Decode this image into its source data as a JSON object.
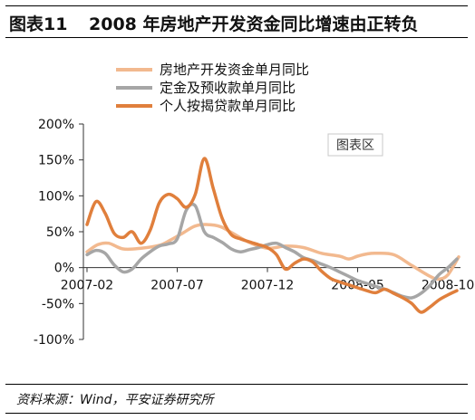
{
  "header": {
    "figure_label": "图表11",
    "title": "2008 年房地产开发资金同比增速由正转负"
  },
  "source": "资料来源：Wind，平安证券研究所",
  "watermark": "图表区",
  "chart_data": {
    "type": "line",
    "title": "2008 年房地产开发资金同比增速由正转负",
    "x_tick_labels": [
      "2007-02",
      "2007-07",
      "2007-12",
      "2008-05",
      "2008-10"
    ],
    "x_tick_positions": [
      0,
      5,
      10,
      15,
      20
    ],
    "x_range": [
      -0.2,
      20.7
    ],
    "ylim": [
      -100,
      200
    ],
    "y_ticks": [
      -100,
      -50,
      0,
      50,
      100,
      150,
      200
    ],
    "y_tick_labels": [
      "-100%",
      "-50%",
      "0%",
      "50%",
      "100%",
      "150%",
      "200%"
    ],
    "legend_position": "top",
    "series": [
      {
        "name": "房地产开发资金单月同比",
        "color": "#f2b98f",
        "x": [
          0,
          0.6,
          1.2,
          2,
          3,
          4,
          4.6,
          5.3,
          6,
          6.7,
          7.4,
          8,
          9,
          10,
          11,
          12,
          13,
          14,
          14.5,
          15,
          15.5,
          16,
          17,
          18,
          19,
          19.5,
          20,
          20.6
        ],
        "values": [
          22,
          32,
          34,
          26,
          27,
          31,
          38,
          48,
          58,
          60,
          57,
          49,
          35,
          27,
          30,
          28,
          20,
          16,
          12,
          16,
          19,
          20,
          18,
          3,
          -12,
          -16,
          -10,
          15
        ]
      },
      {
        "name": "定金及预收款单月同比",
        "color": "#a6a6a6",
        "x": [
          0,
          0.5,
          1,
          1.5,
          2,
          2.5,
          3,
          3.5,
          4,
          4.5,
          5,
          5.5,
          6,
          6.5,
          7,
          7.5,
          8,
          8.5,
          9,
          9.5,
          10,
          10.5,
          11,
          11.5,
          12,
          12.5,
          13,
          13.5,
          14,
          14.5,
          15,
          15.5,
          16,
          16.5,
          17,
          17.5,
          18,
          18.5,
          19,
          19.5,
          20,
          20.5
        ],
        "values": [
          18,
          24,
          20,
          4,
          -6,
          -2,
          12,
          22,
          30,
          33,
          40,
          80,
          86,
          50,
          42,
          35,
          26,
          22,
          25,
          28,
          32,
          34,
          28,
          22,
          14,
          10,
          5,
          0,
          -6,
          -12,
          -18,
          -22,
          -26,
          -30,
          -35,
          -40,
          -42,
          -36,
          -25,
          -10,
          0,
          12
        ]
      },
      {
        "name": "个人按揭贷款单月同比",
        "color": "#e07f3c",
        "x": [
          0,
          0.5,
          1,
          1.5,
          2,
          2.5,
          3,
          3.5,
          4,
          4.5,
          5,
          5.5,
          6,
          6.5,
          7,
          7.5,
          8,
          8.5,
          9,
          9.5,
          10,
          10.5,
          11,
          11.5,
          12,
          12.5,
          13,
          13.5,
          14,
          14.5,
          15,
          15.5,
          16,
          16.5,
          17,
          17.5,
          18,
          18.5,
          19,
          19.5,
          20,
          20.5
        ],
        "values": [
          60,
          92,
          76,
          48,
          42,
          50,
          34,
          52,
          90,
          102,
          96,
          84,
          102,
          152,
          110,
          68,
          46,
          40,
          36,
          32,
          28,
          18,
          -2,
          6,
          12,
          8,
          -5,
          -15,
          -20,
          -24,
          -28,
          -32,
          -35,
          -30,
          -36,
          -42,
          -50,
          -62,
          -55,
          -45,
          -38,
          -32
        ]
      }
    ]
  }
}
